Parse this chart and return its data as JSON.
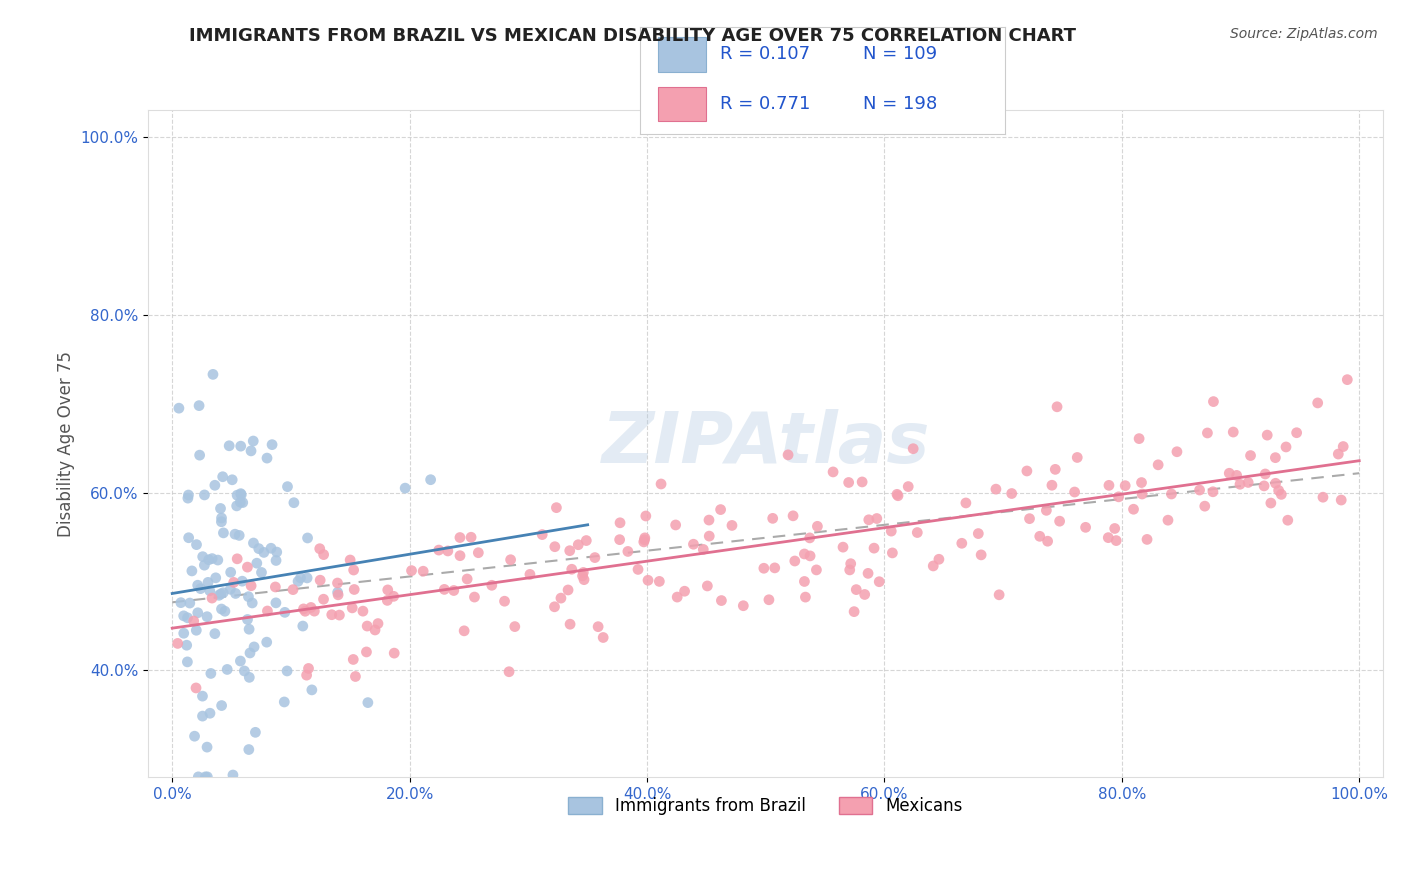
{
  "title": "IMMIGRANTS FROM BRAZIL VS MEXICAN DISABILITY AGE OVER 75 CORRELATION CHART",
  "source_text": "Source: ZipAtlas.com",
  "xlabel": "",
  "ylabel": "Disability Age Over 75",
  "watermark": "ZIPAtlas",
  "legend_labels": [
    "Immigrants from Brazil",
    "Mexicans"
  ],
  "legend_r": [
    "R = 0.107",
    "R = 0.771"
  ],
  "legend_n": [
    "N = 109",
    "N = 198"
  ],
  "brazil_color": "#a8c4e0",
  "mexico_color": "#f4a0b0",
  "brazil_line_color": "#8ab0d0",
  "mexico_line_color": "#e07090",
  "trend_line_color": "#999999",
  "brazil_R": 0.107,
  "mexico_R": 0.771,
  "brazil_N": 109,
  "mexico_N": 198,
  "xlim": [
    0.0,
    1.0
  ],
  "ylim": [
    0.28,
    1.03
  ],
  "x_tick_labels": [
    "0.0%",
    "20.0%",
    "40.0%",
    "60.0%",
    "80.0%",
    "100.0%"
  ],
  "x_tick_values": [
    0.0,
    0.2,
    0.4,
    0.6,
    0.8,
    1.0
  ],
  "y_tick_labels": [
    "40.0%",
    "60.0%",
    "80.0%",
    "100.0%"
  ],
  "y_tick_values": [
    0.4,
    0.6,
    0.8,
    1.0
  ],
  "grid_color": "#cccccc",
  "background_color": "#ffffff",
  "title_color": "#222222",
  "axis_label_color": "#555555",
  "legend_text_color": "#2255cc",
  "title_fontsize": 13,
  "label_fontsize": 12,
  "tick_fontsize": 11,
  "legend_fontsize": 13
}
